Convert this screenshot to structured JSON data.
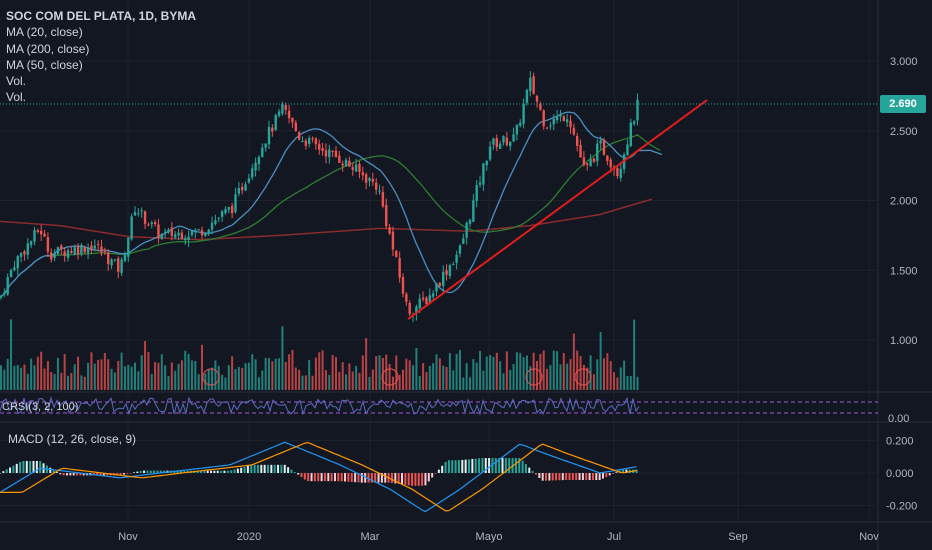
{
  "header": {
    "symbol_line": "SOC COM DEL PLATA, 1D, BYMA",
    "indicators": [
      "MA (20, close)",
      "MA (200, close)",
      "MA (50, close)",
      "Vol.",
      "Vol."
    ]
  },
  "crsi_label": "CRSI(3, 2, 100)",
  "macd_label": "MACD (12, 26, close, 9)",
  "last_price": "2.690",
  "colors": {
    "background": "#131722",
    "up": "#26a69a",
    "down": "#ef5350",
    "ma20": "#4a90c2",
    "ma50": "#2e7d32",
    "ma200": "#8b2b2b",
    "trendline": "#e31c1c",
    "macd_line": "#2196f3",
    "signal_line": "#ff9800",
    "crsi_line": "#5c6bc0",
    "crsi_band": "#9c5bd6"
  },
  "chart_data": {
    "type": "candlestick",
    "price_axis_ticks": [
      "3.000",
      "2.500",
      "2.000",
      "1.500",
      "1.000"
    ],
    "ylim": [
      0.65,
      3.4
    ],
    "macd_axis_ticks": [
      "0.200",
      "0.000",
      "-0.200"
    ],
    "crsi_axis_ticks": [
      "0.00"
    ],
    "x_tick_labels": [
      "Nov",
      "2020",
      "Mar",
      "Mayo",
      "Jul",
      "Sep",
      "Nov"
    ],
    "close_approx": [
      {
        "date": "Sep",
        "value": 1.35
      },
      {
        "date": "late Sep",
        "value": 1.8
      },
      {
        "date": "Oct",
        "value": 1.6
      },
      {
        "date": "Nov",
        "value": 1.9
      },
      {
        "date": "Dec",
        "value": 1.75
      },
      {
        "date": "late Dec",
        "value": 2.3
      },
      {
        "date": "Jan peak",
        "value": 2.65
      },
      {
        "date": "Feb",
        "value": 2.3
      },
      {
        "date": "early Mar",
        "value": 1.8
      },
      {
        "date": "Mar low",
        "value": 1.2
      },
      {
        "date": "Apr",
        "value": 1.55
      },
      {
        "date": "late Apr",
        "value": 2.4
      },
      {
        "date": "May peak",
        "value": 2.85
      },
      {
        "date": "Jun",
        "value": 2.55
      },
      {
        "date": "late Jun",
        "value": 2.2
      },
      {
        "date": "Jul",
        "value": 2.69
      }
    ],
    "last_close": 2.69,
    "trendline": {
      "from": {
        "date": "Mar low",
        "value": 1.15
      },
      "to": {
        "date": "Aug",
        "value": 2.72
      }
    },
    "grid": true,
    "legend_position": "top-left"
  }
}
